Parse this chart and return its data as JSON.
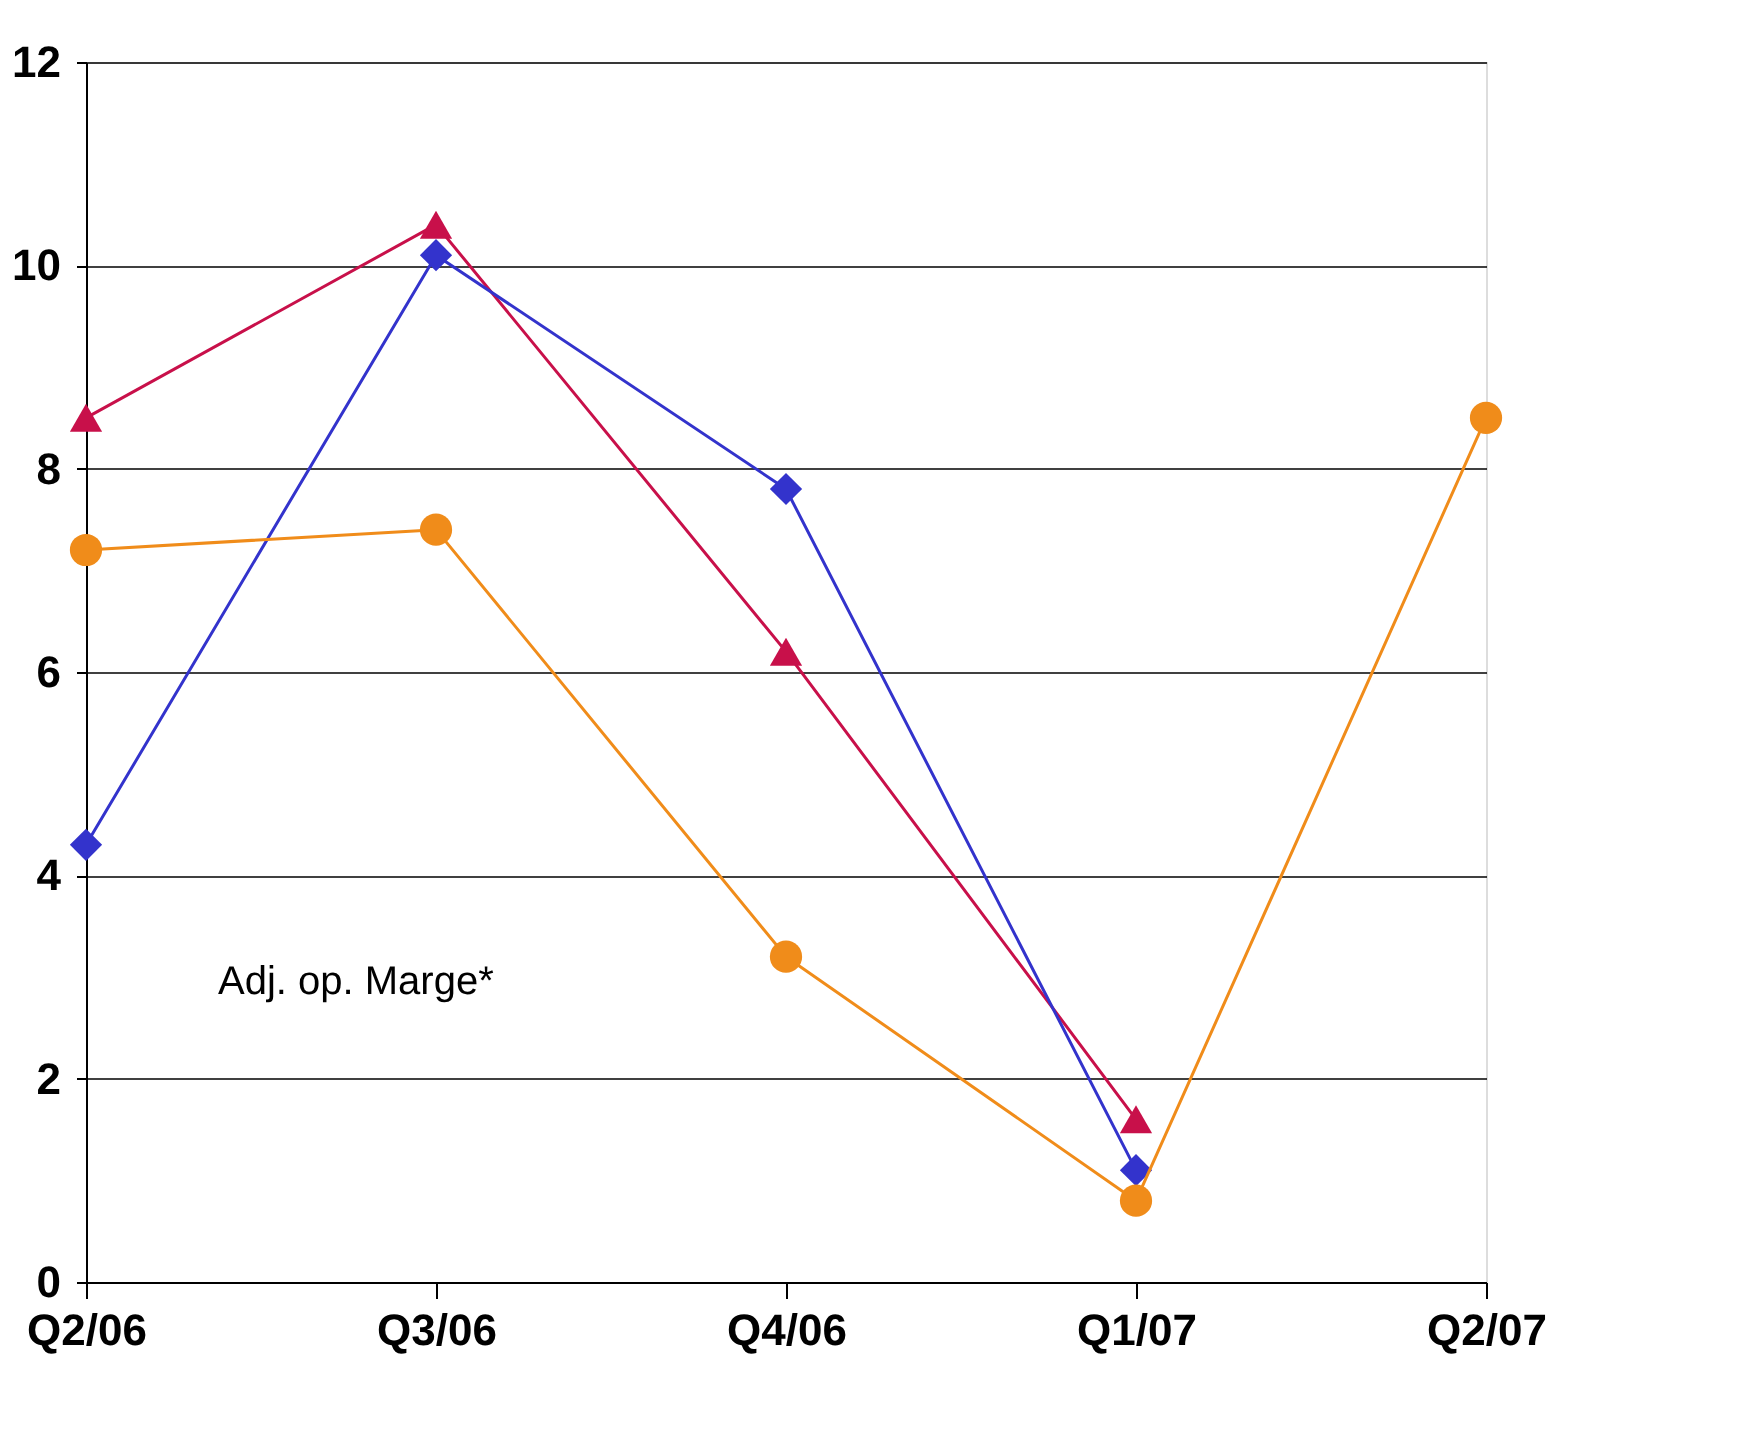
{
  "chart_data": {
    "type": "line",
    "categories": [
      "Q2/06",
      "Q3/06",
      "Q4/06",
      "Q1/07",
      "Q2/07"
    ],
    "series": [
      {
        "color": "#c8104a",
        "marker": "triangle",
        "values": [
          8.5,
          10.4,
          6.2,
          1.6,
          null
        ]
      },
      {
        "color": "#3333cc",
        "marker": "diamond",
        "values": [
          4.3,
          10.1,
          7.8,
          1.1,
          null
        ]
      },
      {
        "color": "#f08c1a",
        "marker": "circle",
        "values": [
          7.2,
          7.4,
          3.2,
          0.8,
          8.5
        ]
      }
    ],
    "ylim": [
      0,
      12
    ],
    "yticks": [
      0,
      2,
      4,
      6,
      8,
      10,
      12
    ],
    "grid": "y",
    "annotations": [
      "Adj. op. Marge*"
    ]
  }
}
